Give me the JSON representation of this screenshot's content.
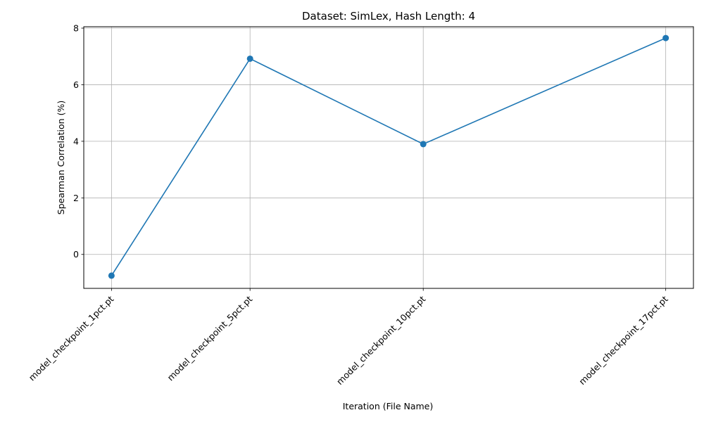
{
  "chart_data": {
    "type": "line",
    "title": "Dataset: SimLex, Hash Length: 4",
    "xlabel": "Iteration (File Name)",
    "ylabel": "Spearman Correlation (%)",
    "x": [
      1,
      5,
      10,
      17
    ],
    "categories": [
      "model_checkpoint_1pct.pt",
      "model_checkpoint_5pct.pt",
      "model_checkpoint_10pct.pt",
      "model_checkpoint_17pct.pt"
    ],
    "values": [
      -0.75,
      6.92,
      3.9,
      7.65
    ],
    "xlim": [
      0.2,
      17.8
    ],
    "ylim": [
      -1.2,
      8.05
    ],
    "yticks": [
      0,
      2,
      4,
      6,
      8
    ],
    "ytick_labels": [
      "0",
      "2",
      "4",
      "6",
      "8"
    ],
    "grid": true,
    "marker": "circle",
    "color": "#1f77b4"
  }
}
